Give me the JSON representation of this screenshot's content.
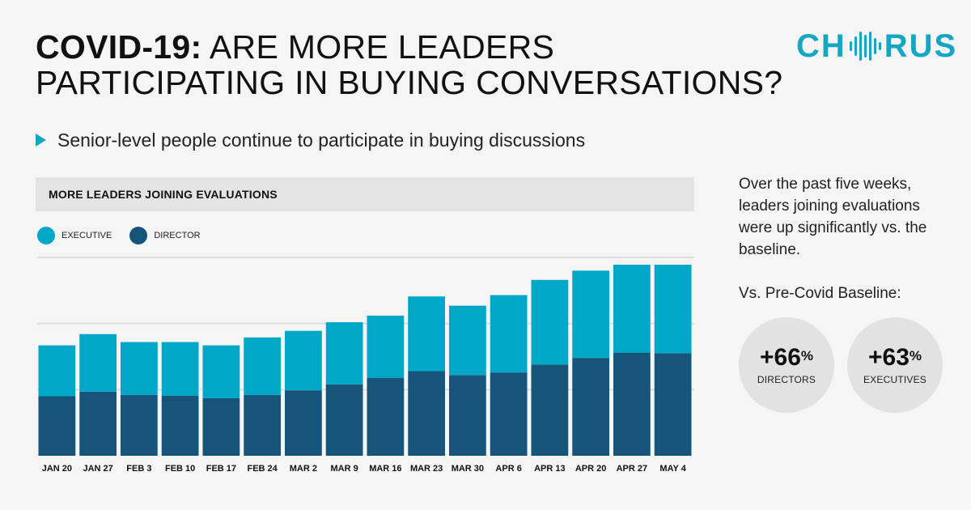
{
  "header": {
    "title_bold": "COVID-19:",
    "title_rest_line1": "ARE MORE LEADERS",
    "title_line2": "PARTICIPATING IN BUYING CONVERSATIONS?",
    "logo_left": "CH",
    "logo_right": "RUS"
  },
  "subtitle": "Senior-level people continue to participate in buying discussions",
  "chart_header": "MORE LEADERS JOINING EVALUATIONS",
  "legend": {
    "executive": "EXECUTIVE",
    "director": "DIRECTOR"
  },
  "colors": {
    "executive": "#00a7c7",
    "director": "#17547a",
    "accent": "#15a6c4",
    "grid": "#dedede"
  },
  "chart_data": {
    "type": "bar",
    "stacked": true,
    "title": "MORE LEADERS JOINING EVALUATIONS",
    "xlabel": "",
    "ylabel": "",
    "ylim": [
      0,
      300
    ],
    "grid": true,
    "categories": [
      "JAN 20",
      "JAN 27",
      "FEB 3",
      "FEB 10",
      "FEB 17",
      "FEB 24",
      "MAR 2",
      "MAR 9",
      "MAR 16",
      "MAR 23",
      "MAR 30",
      "APR 6",
      "APR 13",
      "APR 20",
      "APR 27",
      "MAY 4"
    ],
    "series": [
      {
        "name": "DIRECTOR",
        "values": [
          90,
          97,
          92,
          91,
          87,
          92,
          99,
          108,
          118,
          128,
          122,
          126,
          138,
          148,
          156,
          155
        ]
      },
      {
        "name": "EXECUTIVE",
        "values": [
          77,
          87,
          80,
          81,
          80,
          87,
          90,
          94,
          94,
          113,
          105,
          117,
          128,
          132,
          133,
          134
        ]
      }
    ]
  },
  "side": {
    "text": "Over the past five weeks, leaders joining evaluations were up significantly vs. the baseline.",
    "baseline_label": "Vs. Pre-Covid Baseline:",
    "stats": [
      {
        "value": "+66",
        "unit": "%",
        "label": "DIRECTORS"
      },
      {
        "value": "+63",
        "unit": "%",
        "label": "EXECUTIVES"
      }
    ]
  }
}
